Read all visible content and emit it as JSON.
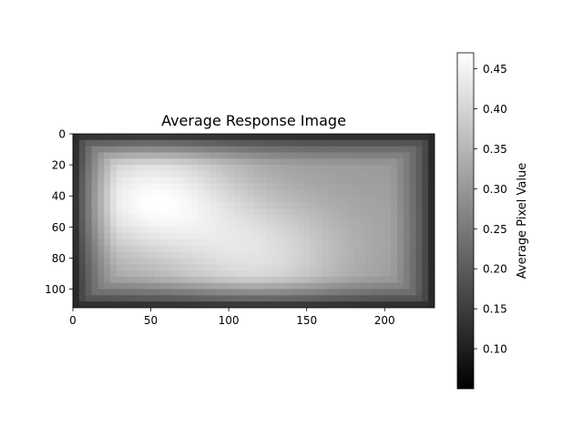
{
  "chart_data": {
    "type": "heatmap",
    "title": "Average Response Image",
    "xlabel": "",
    "ylabel": "",
    "x_range": [
      0,
      232
    ],
    "y_range": [
      0,
      112
    ],
    "y_inverted": true,
    "x_ticks": [
      0,
      50,
      100,
      150,
      200
    ],
    "y_ticks": [
      0,
      20,
      40,
      60,
      80,
      100
    ],
    "colormap": "gray",
    "grid": false,
    "colorbar": {
      "label": "Average Pixel Value",
      "range": [
        0.05,
        0.47
      ],
      "ticks": [
        0.1,
        0.15,
        0.2,
        0.25,
        0.3,
        0.35,
        0.4,
        0.45
      ],
      "tick_labels": [
        "0.10",
        "0.15",
        "0.20",
        "0.25",
        "0.30",
        "0.35",
        "0.40",
        "0.45"
      ],
      "position": "right"
    },
    "value_field": {
      "base": 0.3,
      "edge_value": 0.05,
      "blobs": [
        {
          "x": 50,
          "y": 42,
          "peak": 0.46
        },
        {
          "x": 120,
          "y": 78,
          "peak": 0.41
        },
        {
          "x": 200,
          "y": 55,
          "peak": 0.31
        }
      ]
    }
  }
}
